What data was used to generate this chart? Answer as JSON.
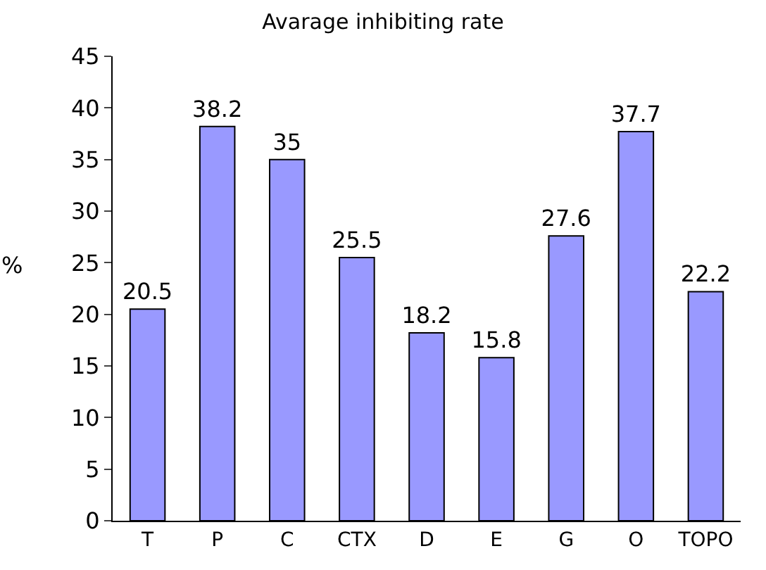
{
  "chart_data": {
    "type": "bar",
    "title": "Avarage inhibiting rate",
    "ylabel": "%",
    "categories": [
      "T",
      "P",
      "C",
      "CTX",
      "D",
      "E",
      "G",
      "O",
      "TOPO"
    ],
    "values": [
      20.5,
      38.2,
      35,
      25.5,
      18.2,
      15.8,
      27.6,
      37.7,
      22.2
    ],
    "color": "#9999ff",
    "ylim": [
      0,
      45
    ],
    "yticks": [
      0,
      5,
      10,
      15,
      20,
      25,
      30,
      35,
      40,
      45
    ],
    "grid": false,
    "data_labels": true
  }
}
